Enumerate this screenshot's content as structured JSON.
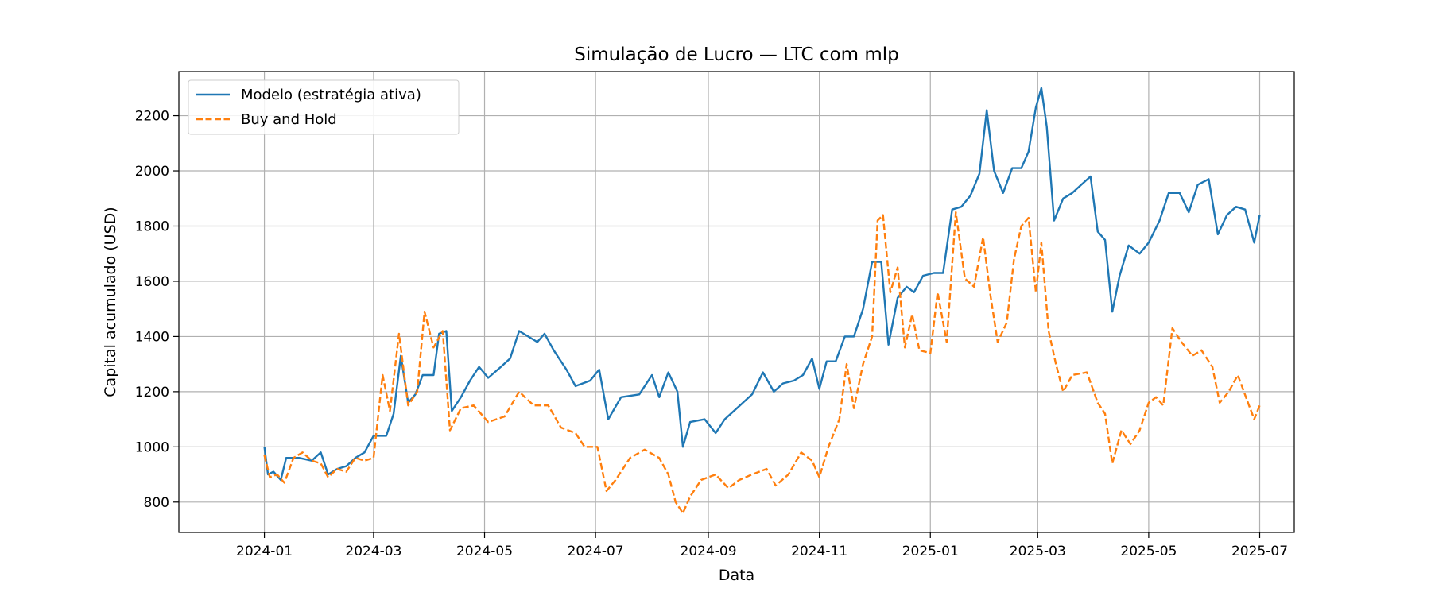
{
  "chart_data": {
    "type": "line",
    "title": "Simulação de Lucro — LTC com mlp",
    "xlabel": "Data",
    "ylabel": "Capital acumulado (USD)",
    "x_axis": {
      "kind": "date",
      "range": [
        "2023-11-15",
        "2025-07-20"
      ],
      "ticks": [
        "2024-01-01",
        "2024-03-01",
        "2024-05-01",
        "2024-07-01",
        "2024-09-01",
        "2024-11-01",
        "2025-01-01",
        "2025-03-01",
        "2025-05-01",
        "2025-07-01"
      ],
      "tick_labels": [
        "2024-01",
        "2024-03",
        "2024-05",
        "2024-07",
        "2024-09",
        "2024-11",
        "2025-01",
        "2025-03",
        "2025-05",
        "2025-07"
      ]
    },
    "y_axis": {
      "range": [
        690,
        2360
      ],
      "ticks": [
        800,
        1000,
        1200,
        1400,
        1600,
        1800,
        2000,
        2200
      ]
    },
    "grid": true,
    "legend_position": "top-left",
    "series": [
      {
        "name": "Modelo (estratégia ativa)",
        "color": "#1f77b4",
        "style": "solid",
        "points": [
          [
            "2024-01-01",
            1000
          ],
          [
            "2024-01-03",
            900
          ],
          [
            "2024-01-06",
            910
          ],
          [
            "2024-01-10",
            880
          ],
          [
            "2024-01-13",
            960
          ],
          [
            "2024-01-20",
            960
          ],
          [
            "2024-01-27",
            950
          ],
          [
            "2024-02-01",
            980
          ],
          [
            "2024-02-05",
            900
          ],
          [
            "2024-02-10",
            920
          ],
          [
            "2024-02-15",
            930
          ],
          [
            "2024-02-20",
            960
          ],
          [
            "2024-02-25",
            980
          ],
          [
            "2024-03-01",
            1040
          ],
          [
            "2024-03-08",
            1040
          ],
          [
            "2024-03-12",
            1120
          ],
          [
            "2024-03-16",
            1330
          ],
          [
            "2024-03-20",
            1160
          ],
          [
            "2024-03-24",
            1190
          ],
          [
            "2024-03-28",
            1260
          ],
          [
            "2024-04-03",
            1260
          ],
          [
            "2024-04-06",
            1410
          ],
          [
            "2024-04-10",
            1420
          ],
          [
            "2024-04-13",
            1130
          ],
          [
            "2024-04-18",
            1180
          ],
          [
            "2024-04-23",
            1240
          ],
          [
            "2024-04-28",
            1290
          ],
          [
            "2024-05-03",
            1250
          ],
          [
            "2024-05-10",
            1290
          ],
          [
            "2024-05-15",
            1320
          ],
          [
            "2024-05-20",
            1420
          ],
          [
            "2024-05-25",
            1400
          ],
          [
            "2024-05-30",
            1380
          ],
          [
            "2024-06-03",
            1410
          ],
          [
            "2024-06-08",
            1350
          ],
          [
            "2024-06-15",
            1280
          ],
          [
            "2024-06-20",
            1220
          ],
          [
            "2024-06-28",
            1240
          ],
          [
            "2024-07-03",
            1280
          ],
          [
            "2024-07-08",
            1100
          ],
          [
            "2024-07-15",
            1180
          ],
          [
            "2024-07-25",
            1190
          ],
          [
            "2024-08-01",
            1260
          ],
          [
            "2024-08-05",
            1180
          ],
          [
            "2024-08-10",
            1270
          ],
          [
            "2024-08-15",
            1200
          ],
          [
            "2024-08-18",
            1000
          ],
          [
            "2024-08-22",
            1090
          ],
          [
            "2024-08-30",
            1100
          ],
          [
            "2024-09-05",
            1050
          ],
          [
            "2024-09-10",
            1100
          ],
          [
            "2024-09-15",
            1130
          ],
          [
            "2024-09-20",
            1160
          ],
          [
            "2024-09-25",
            1190
          ],
          [
            "2024-10-01",
            1270
          ],
          [
            "2024-10-07",
            1200
          ],
          [
            "2024-10-12",
            1230
          ],
          [
            "2024-10-18",
            1240
          ],
          [
            "2024-10-23",
            1260
          ],
          [
            "2024-10-28",
            1320
          ],
          [
            "2024-11-01",
            1210
          ],
          [
            "2024-11-05",
            1310
          ],
          [
            "2024-11-10",
            1310
          ],
          [
            "2024-11-15",
            1400
          ],
          [
            "2024-11-20",
            1400
          ],
          [
            "2024-11-25",
            1500
          ],
          [
            "2024-11-30",
            1670
          ],
          [
            "2024-12-05",
            1670
          ],
          [
            "2024-12-09",
            1370
          ],
          [
            "2024-12-14",
            1540
          ],
          [
            "2024-12-19",
            1580
          ],
          [
            "2024-12-23",
            1560
          ],
          [
            "2024-12-28",
            1620
          ],
          [
            "2025-01-03",
            1630
          ],
          [
            "2025-01-08",
            1630
          ],
          [
            "2025-01-13",
            1860
          ],
          [
            "2025-01-18",
            1870
          ],
          [
            "2025-01-23",
            1910
          ],
          [
            "2025-01-28",
            1990
          ],
          [
            "2025-02-01",
            2220
          ],
          [
            "2025-02-05",
            2000
          ],
          [
            "2025-02-10",
            1920
          ],
          [
            "2025-02-15",
            2010
          ],
          [
            "2025-02-20",
            2010
          ],
          [
            "2025-02-24",
            2070
          ],
          [
            "2025-02-28",
            2230
          ],
          [
            "2025-03-03",
            2300
          ],
          [
            "2025-03-06",
            2160
          ],
          [
            "2025-03-10",
            1820
          ],
          [
            "2025-03-15",
            1900
          ],
          [
            "2025-03-20",
            1920
          ],
          [
            "2025-03-25",
            1950
          ],
          [
            "2025-03-30",
            1980
          ],
          [
            "2025-04-03",
            1780
          ],
          [
            "2025-04-07",
            1750
          ],
          [
            "2025-04-11",
            1490
          ],
          [
            "2025-04-15",
            1620
          ],
          [
            "2025-04-20",
            1730
          ],
          [
            "2025-04-26",
            1700
          ],
          [
            "2025-05-01",
            1740
          ],
          [
            "2025-05-07",
            1820
          ],
          [
            "2025-05-12",
            1920
          ],
          [
            "2025-05-18",
            1920
          ],
          [
            "2025-05-23",
            1850
          ],
          [
            "2025-05-28",
            1950
          ],
          [
            "2025-06-03",
            1970
          ],
          [
            "2025-06-08",
            1770
          ],
          [
            "2025-06-13",
            1840
          ],
          [
            "2025-06-18",
            1870
          ],
          [
            "2025-06-23",
            1860
          ],
          [
            "2025-06-28",
            1740
          ],
          [
            "2025-07-01",
            1840
          ]
        ]
      },
      {
        "name": "Buy and Hold",
        "color": "#ff7f0e",
        "style": "dashed",
        "points": [
          [
            "2024-01-01",
            970
          ],
          [
            "2024-01-04",
            890
          ],
          [
            "2024-01-08",
            900
          ],
          [
            "2024-01-12",
            870
          ],
          [
            "2024-01-17",
            960
          ],
          [
            "2024-01-22",
            980
          ],
          [
            "2024-01-27",
            950
          ],
          [
            "2024-02-01",
            940
          ],
          [
            "2024-02-05",
            890
          ],
          [
            "2024-02-10",
            920
          ],
          [
            "2024-02-15",
            910
          ],
          [
            "2024-02-20",
            960
          ],
          [
            "2024-02-25",
            950
          ],
          [
            "2024-03-01",
            960
          ],
          [
            "2024-03-06",
            1260
          ],
          [
            "2024-03-10",
            1130
          ],
          [
            "2024-03-15",
            1410
          ],
          [
            "2024-03-20",
            1150
          ],
          [
            "2024-03-25",
            1200
          ],
          [
            "2024-03-29",
            1490
          ],
          [
            "2024-04-03",
            1360
          ],
          [
            "2024-04-08",
            1420
          ],
          [
            "2024-04-12",
            1060
          ],
          [
            "2024-04-18",
            1140
          ],
          [
            "2024-04-25",
            1150
          ],
          [
            "2024-05-03",
            1090
          ],
          [
            "2024-05-12",
            1110
          ],
          [
            "2024-05-20",
            1200
          ],
          [
            "2024-05-28",
            1150
          ],
          [
            "2024-06-05",
            1150
          ],
          [
            "2024-06-12",
            1070
          ],
          [
            "2024-06-20",
            1050
          ],
          [
            "2024-06-25",
            1000
          ],
          [
            "2024-07-02",
            1000
          ],
          [
            "2024-07-07",
            840
          ],
          [
            "2024-07-12",
            880
          ],
          [
            "2024-07-20",
            960
          ],
          [
            "2024-07-28",
            990
          ],
          [
            "2024-08-05",
            960
          ],
          [
            "2024-08-10",
            900
          ],
          [
            "2024-08-14",
            800
          ],
          [
            "2024-08-18",
            760
          ],
          [
            "2024-08-22",
            820
          ],
          [
            "2024-08-28",
            880
          ],
          [
            "2024-09-05",
            900
          ],
          [
            "2024-09-12",
            850
          ],
          [
            "2024-09-18",
            880
          ],
          [
            "2024-09-25",
            900
          ],
          [
            "2024-10-03",
            920
          ],
          [
            "2024-10-08",
            860
          ],
          [
            "2024-10-15",
            900
          ],
          [
            "2024-10-22",
            980
          ],
          [
            "2024-10-28",
            950
          ],
          [
            "2024-11-01",
            890
          ],
          [
            "2024-11-06",
            1000
          ],
          [
            "2024-11-12",
            1100
          ],
          [
            "2024-11-16",
            1300
          ],
          [
            "2024-11-20",
            1140
          ],
          [
            "2024-11-25",
            1300
          ],
          [
            "2024-11-30",
            1400
          ],
          [
            "2024-12-03",
            1820
          ],
          [
            "2024-12-06",
            1840
          ],
          [
            "2024-12-10",
            1560
          ],
          [
            "2024-12-14",
            1650
          ],
          [
            "2024-12-18",
            1360
          ],
          [
            "2024-12-22",
            1480
          ],
          [
            "2024-12-26",
            1350
          ],
          [
            "2025-01-01",
            1340
          ],
          [
            "2025-01-05",
            1560
          ],
          [
            "2025-01-10",
            1380
          ],
          [
            "2025-01-15",
            1850
          ],
          [
            "2025-01-20",
            1610
          ],
          [
            "2025-01-25",
            1580
          ],
          [
            "2025-01-30",
            1760
          ],
          [
            "2025-02-03",
            1550
          ],
          [
            "2025-02-07",
            1380
          ],
          [
            "2025-02-12",
            1450
          ],
          [
            "2025-02-16",
            1680
          ],
          [
            "2025-02-20",
            1800
          ],
          [
            "2025-02-24",
            1830
          ],
          [
            "2025-02-28",
            1560
          ],
          [
            "2025-03-03",
            1740
          ],
          [
            "2025-03-07",
            1420
          ],
          [
            "2025-03-11",
            1300
          ],
          [
            "2025-03-15",
            1200
          ],
          [
            "2025-03-20",
            1260
          ],
          [
            "2025-03-28",
            1270
          ],
          [
            "2025-04-03",
            1160
          ],
          [
            "2025-04-07",
            1120
          ],
          [
            "2025-04-11",
            940
          ],
          [
            "2025-04-16",
            1060
          ],
          [
            "2025-04-21",
            1010
          ],
          [
            "2025-04-26",
            1060
          ],
          [
            "2025-05-01",
            1160
          ],
          [
            "2025-05-05",
            1180
          ],
          [
            "2025-05-09",
            1150
          ],
          [
            "2025-05-14",
            1430
          ],
          [
            "2025-05-19",
            1380
          ],
          [
            "2025-05-25",
            1330
          ],
          [
            "2025-05-30",
            1350
          ],
          [
            "2025-06-05",
            1290
          ],
          [
            "2025-06-09",
            1160
          ],
          [
            "2025-06-14",
            1200
          ],
          [
            "2025-06-19",
            1260
          ],
          [
            "2025-06-24",
            1170
          ],
          [
            "2025-06-28",
            1100
          ],
          [
            "2025-07-01",
            1150
          ]
        ]
      }
    ]
  }
}
